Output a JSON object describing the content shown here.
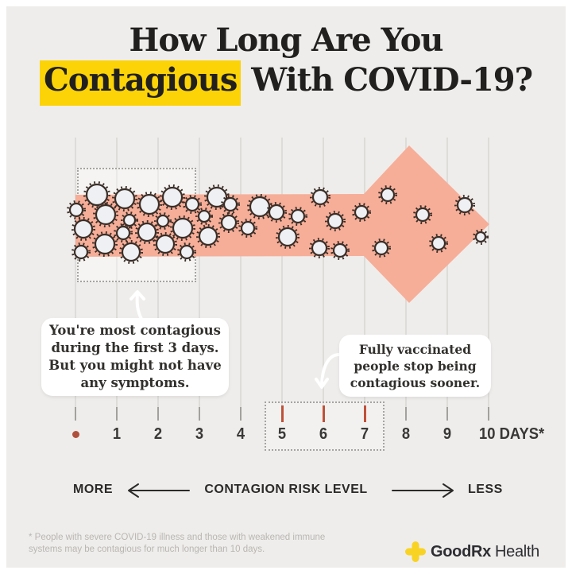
{
  "title": {
    "line1": "How Long Are You",
    "highlight_word": "Contagious",
    "line2_rest": " With COVID-19?"
  },
  "timeline": {
    "days": [
      "1",
      "2",
      "3",
      "4",
      "5",
      "6",
      "7",
      "8",
      "9",
      "10"
    ],
    "last_day_suffix": "DAYS*",
    "highlighted_days": [
      5,
      6,
      7
    ]
  },
  "callout_most_contagious": {
    "lines": [
      "You're most contagious",
      "during the first 3 days.",
      "But you might not have",
      "any symptoms."
    ]
  },
  "callout_vaccinated": {
    "lines": [
      "Fully vaccinated",
      "people stop being",
      "contagious sooner."
    ]
  },
  "risk_scale": {
    "more": "MORE",
    "label": "CONTAGION RISK LEVEL",
    "less": "LESS"
  },
  "footnote": {
    "line1": "* People with severe COVID-19 illness and those with weakened immune",
    "line2": "systems may be contagious for much longer than 10 days."
  },
  "brand": {
    "name_bold": "GoodRx",
    "name_regular": "Health"
  },
  "colors": {
    "background": "#efedeb",
    "highlight": "#fcd307",
    "arrow": "#f6ae98",
    "tick_red": "#bf5139",
    "virus_fill": "#eef0f3",
    "virus_stroke": "#3a2e28",
    "brand_yellow": "#f8d324"
  }
}
